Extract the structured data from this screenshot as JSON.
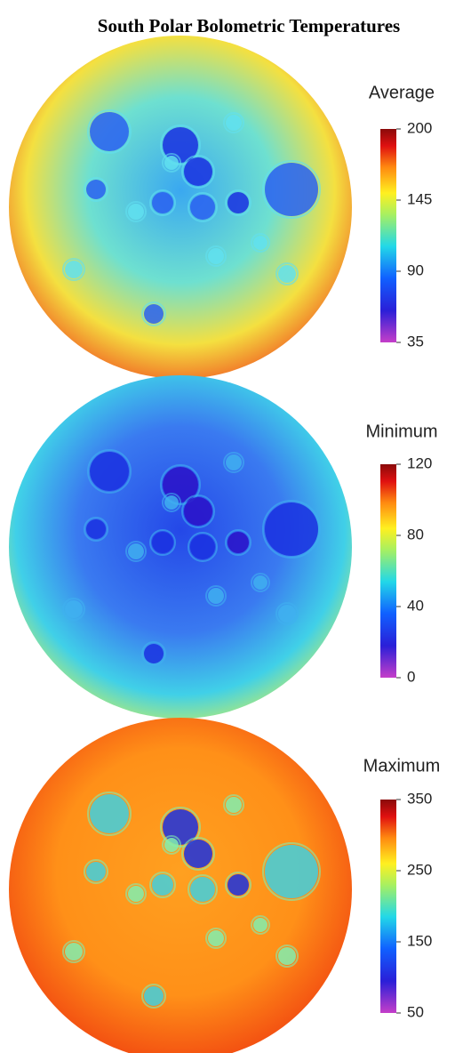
{
  "title": "South Polar Bolometric Temperatures",
  "panels": [
    {
      "label": "Average",
      "clim": [
        35,
        200
      ],
      "ticks": [
        35,
        90,
        145,
        200
      ]
    },
    {
      "label": "Minimum",
      "clim": [
        0,
        120
      ],
      "ticks": [
        0,
        40,
        80,
        120
      ]
    },
    {
      "label": "Maximum",
      "clim": [
        50,
        350
      ],
      "ticks": [
        50,
        150,
        250,
        350
      ]
    }
  ]
}
